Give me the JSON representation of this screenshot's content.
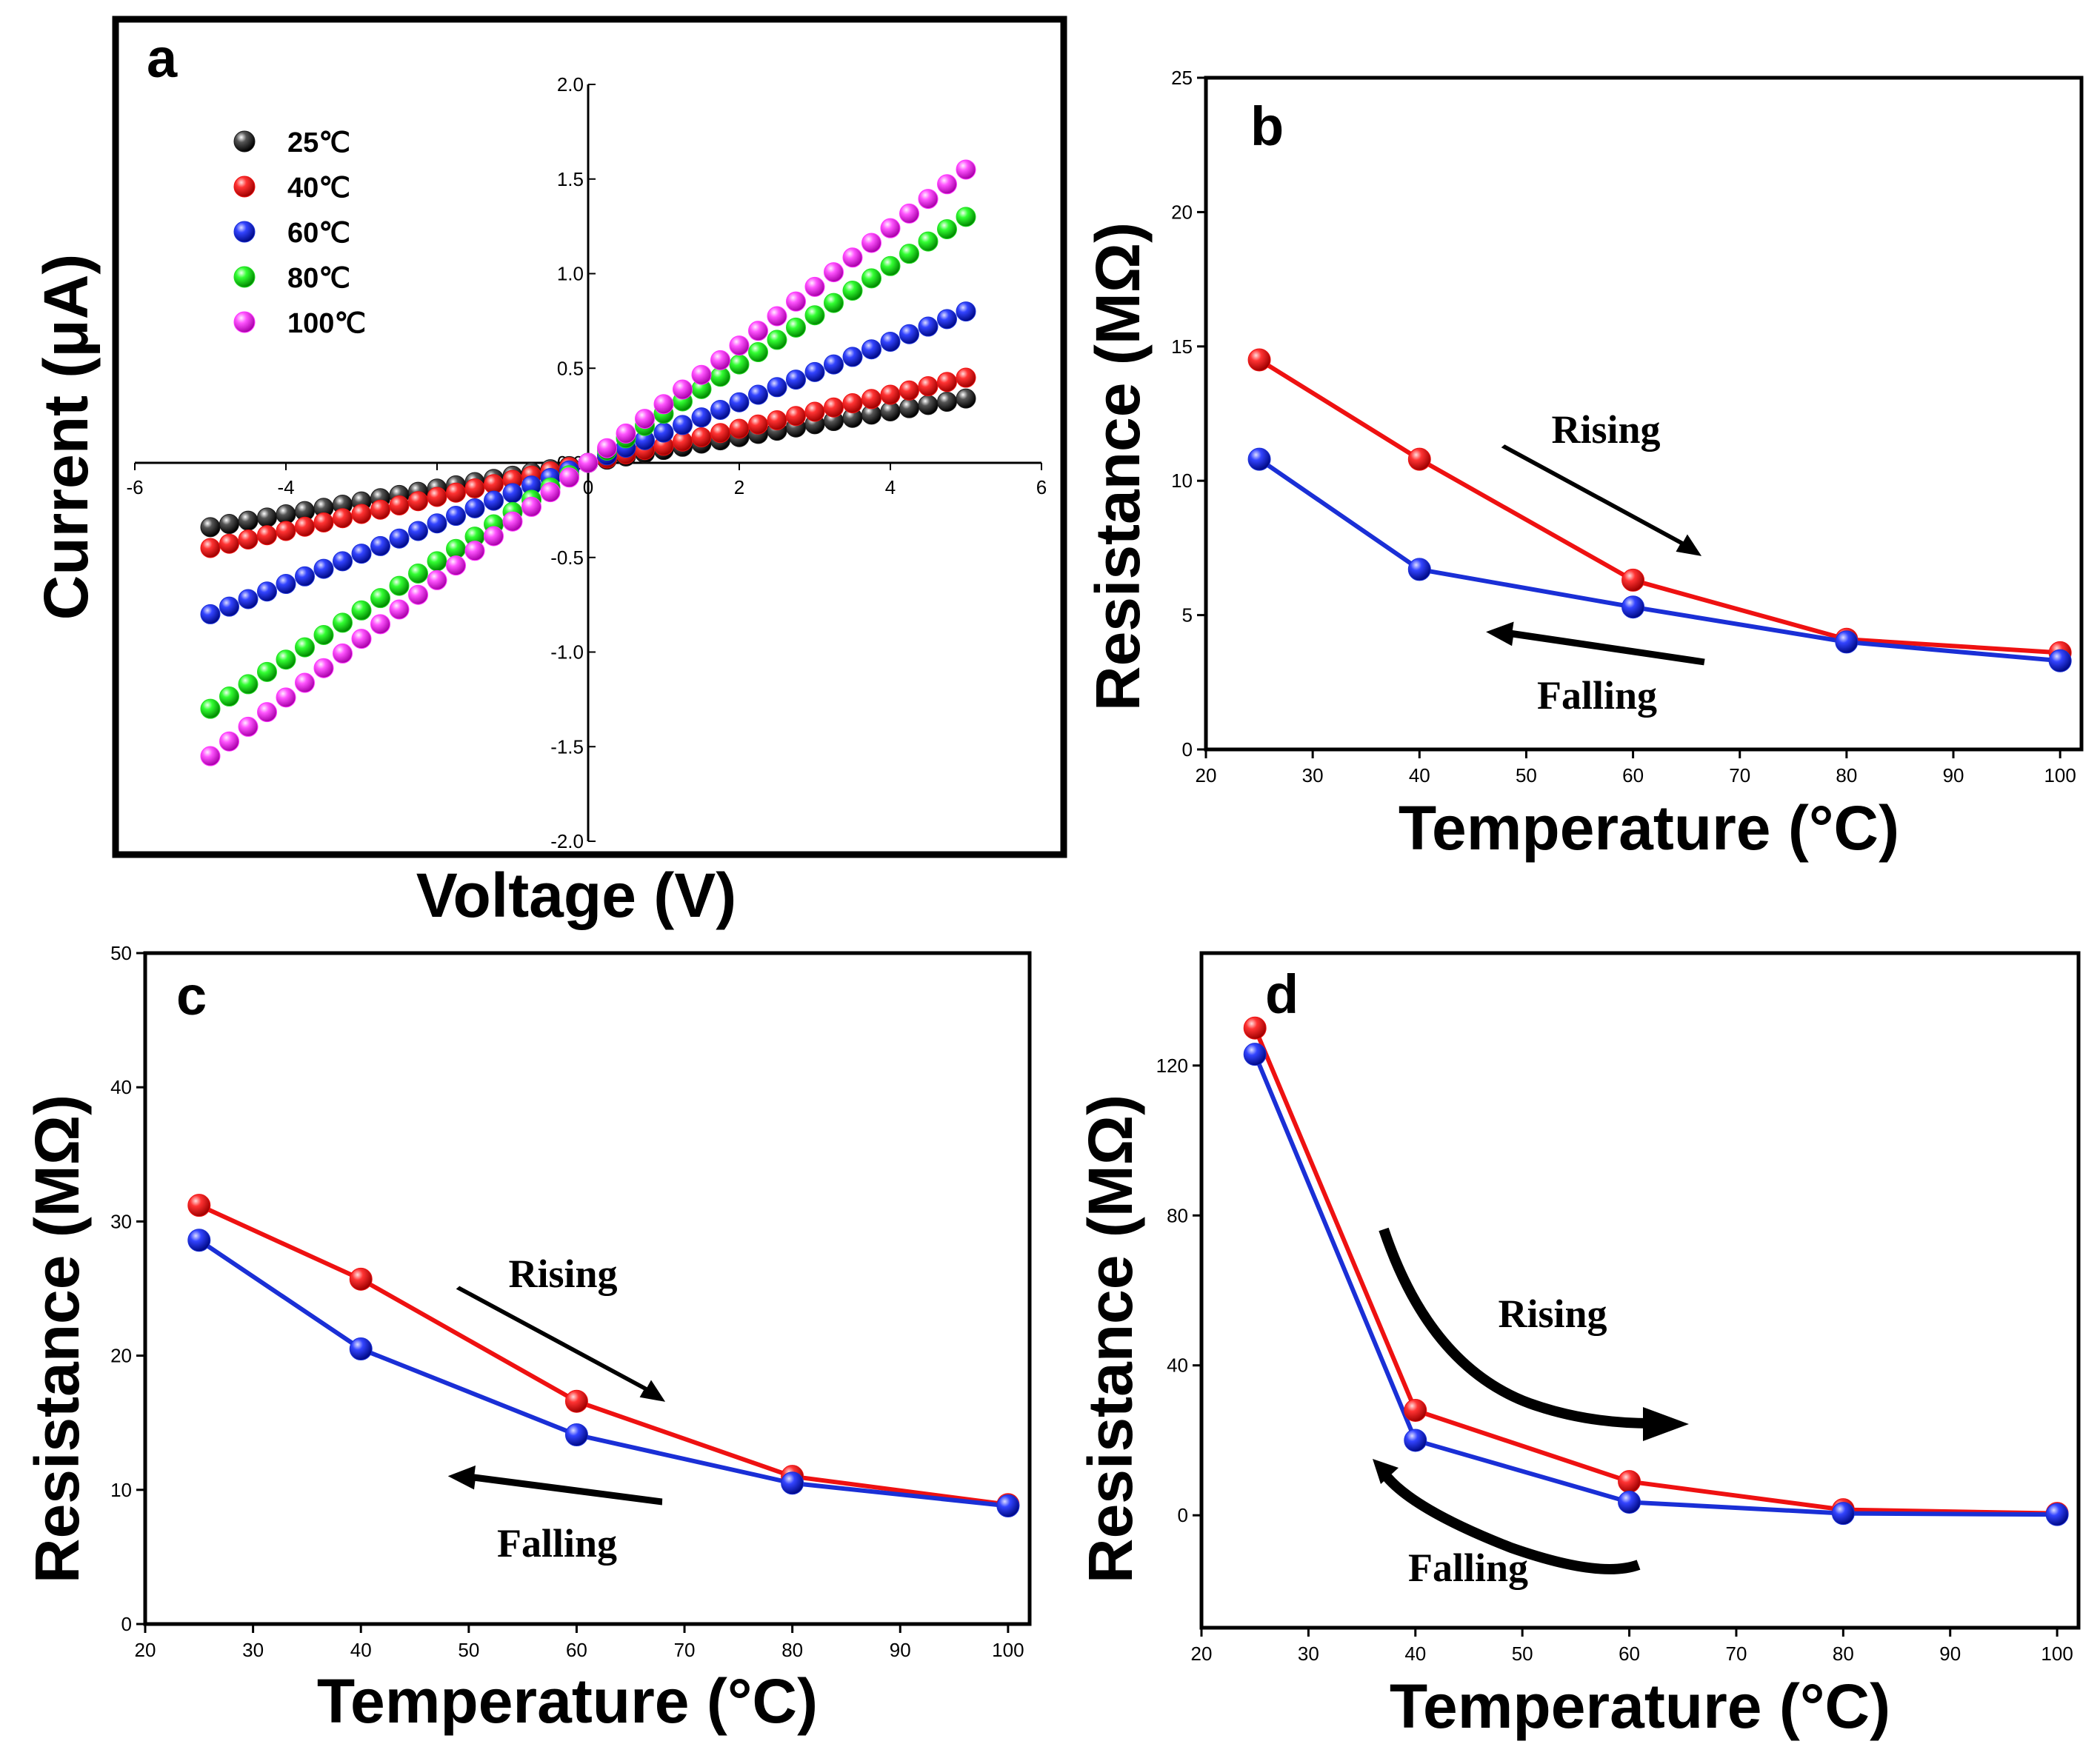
{
  "colors": {
    "black": "#1a1a1a",
    "red": "#ee1111",
    "blue": "#1a2fd6",
    "green": "#22dd22",
    "magenta": "#ff33ff",
    "arrow": "#000000"
  },
  "chart_data": [
    {
      "id": "a",
      "type": "scatter",
      "panel_label": "a",
      "xlabel": "Voltage (V)",
      "ylabel": "Current (μA)",
      "xlim": [
        -6,
        6
      ],
      "ylim": [
        -2.0,
        2.0
      ],
      "x_ticks": [
        "-6",
        "-4",
        "-2",
        "0",
        "2",
        "4",
        "6"
      ],
      "y_ticks": [
        "2.0",
        "1.5",
        "1.0",
        "0.5",
        "0.0",
        "-0.5",
        "-1.0",
        "-1.5",
        "-2.0"
      ],
      "legend": {
        "position": "top-left"
      },
      "series": [
        {
          "name": "25℃",
          "color": "#1a1a1a",
          "slope": 0.068
        },
        {
          "name": "40℃",
          "color": "#ee1111",
          "slope": 0.09
        },
        {
          "name": "60℃",
          "color": "#1a2fd6",
          "slope": 0.16
        },
        {
          "name": "80℃",
          "color": "#22dd22",
          "slope": 0.26
        },
        {
          "name": "100℃",
          "color": "#ff33ff",
          "slope": 0.31
        }
      ],
      "x_points": [
        -5,
        -4.75,
        -4.5,
        -4.25,
        -4,
        -3.75,
        -3.5,
        -3.25,
        -3,
        -2.75,
        -2.5,
        -2.25,
        -2,
        -1.75,
        -1.5,
        -1.25,
        -1,
        -0.75,
        -0.5,
        -0.25,
        0,
        0.25,
        0.5,
        0.75,
        1,
        1.25,
        1.5,
        1.75,
        2,
        2.25,
        2.5,
        2.75,
        3,
        3.25,
        3.5,
        3.75,
        4,
        4.25,
        4.5,
        4.75,
        5
      ]
    },
    {
      "id": "b",
      "type": "line",
      "panel_label": "b",
      "xlabel": "Temperature (°C)",
      "ylabel": "Resistance (MΩ)",
      "xlim": [
        20,
        102
      ],
      "ylim": [
        0,
        25
      ],
      "x_ticks": [
        "20",
        "30",
        "40",
        "50",
        "60",
        "70",
        "80",
        "90",
        "100"
      ],
      "y_ticks": [
        "0",
        "5",
        "10",
        "15",
        "20",
        "25"
      ],
      "categories": [
        25,
        40,
        60,
        80,
        100
      ],
      "series": [
        {
          "name": "Rising",
          "color": "#ee1111",
          "values": [
            14.5,
            10.8,
            6.3,
            4.1,
            3.6
          ]
        },
        {
          "name": "Falling",
          "color": "#1a2fd6",
          "values": [
            10.8,
            6.7,
            5.3,
            4.0,
            3.3
          ]
        }
      ],
      "annotations": [
        "Rising",
        "Falling"
      ]
    },
    {
      "id": "c",
      "type": "line",
      "panel_label": "c",
      "xlabel": "Temperature (°C)",
      "ylabel": "Resistance (MΩ)",
      "xlim": [
        20,
        102
      ],
      "ylim": [
        0,
        50
      ],
      "x_ticks": [
        "20",
        "30",
        "40",
        "50",
        "60",
        "70",
        "80",
        "90",
        "100"
      ],
      "y_ticks": [
        "0",
        "10",
        "20",
        "30",
        "40",
        "50"
      ],
      "categories": [
        25,
        40,
        60,
        80,
        100
      ],
      "series": [
        {
          "name": "Rising",
          "color": "#ee1111",
          "values": [
            31.2,
            25.7,
            16.6,
            11.0,
            8.9
          ]
        },
        {
          "name": "Falling",
          "color": "#1a2fd6",
          "values": [
            28.6,
            20.5,
            14.1,
            10.5,
            8.8
          ]
        }
      ],
      "annotations": [
        "Rising",
        "Falling"
      ]
    },
    {
      "id": "d",
      "type": "line",
      "panel_label": "d",
      "xlabel": "Temperature (°C)",
      "ylabel": "Resistance (MΩ)",
      "xlim": [
        20,
        102
      ],
      "ylim": [
        -30,
        150
      ],
      "x_ticks": [
        "20",
        "30",
        "40",
        "50",
        "60",
        "70",
        "80",
        "90",
        "100"
      ],
      "y_ticks": [
        "0",
        "40",
        "80",
        "120"
      ],
      "categories": [
        25,
        40,
        60,
        80,
        100
      ],
      "series": [
        {
          "name": "Rising",
          "color": "#ee1111",
          "values": [
            130,
            28,
            9,
            1.5,
            0.5
          ]
        },
        {
          "name": "Falling",
          "color": "#1a2fd6",
          "values": [
            123,
            20,
            3.5,
            0.5,
            0.2
          ]
        }
      ],
      "annotations": [
        "Rising",
        "Falling"
      ]
    }
  ]
}
